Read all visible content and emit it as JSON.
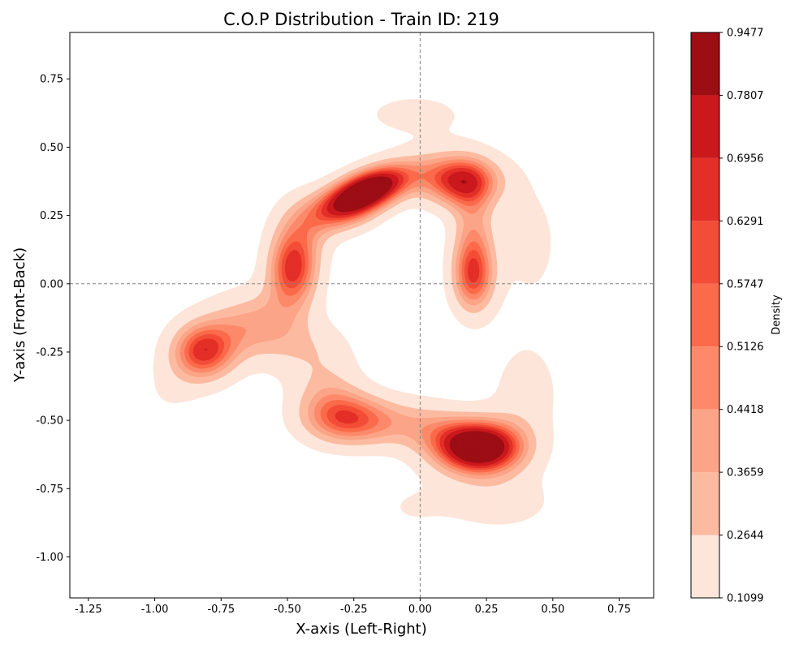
{
  "chart_data": {
    "type": "contour",
    "title": "C.O.P Distribution - Train ID: 219",
    "xlabel": "X-axis (Left-Right)",
    "ylabel": "Y-axis (Front-Back)",
    "xlim": [
      -1.32,
      0.88
    ],
    "ylim": [
      -1.15,
      0.92
    ],
    "x_ticks": [
      -1.25,
      -1.0,
      -0.75,
      -0.5,
      -0.25,
      0.0,
      0.25,
      0.5,
      0.75
    ],
    "x_tick_labels": [
      "-1.25",
      "-1.00",
      "-0.75",
      "-0.50",
      "-0.25",
      "0.00",
      "0.25",
      "0.50",
      "0.75"
    ],
    "y_ticks": [
      0.75,
      0.5,
      0.25,
      0.0,
      -0.25,
      -0.5,
      -0.75,
      -1.0
    ],
    "y_tick_labels": [
      "0.75",
      "0.50",
      "0.25",
      "0.00",
      "-0.25",
      "-0.50",
      "-0.75",
      "-1.00"
    ],
    "reference_lines": {
      "x": 0.0,
      "y": 0.0,
      "style": "dashed",
      "color": "#808080"
    },
    "grid": false,
    "density_peaks": [
      {
        "x": -0.2,
        "y": 0.34,
        "level": 0.9477
      },
      {
        "x": 0.22,
        "y": -0.6,
        "level": 0.9477
      },
      {
        "x": 0.2,
        "y": 0.0,
        "level": 0.62
      },
      {
        "x": -0.82,
        "y": -0.25,
        "level": 0.62
      },
      {
        "x": -0.48,
        "y": 0.05,
        "level": 0.75
      },
      {
        "x": 0.15,
        "y": 0.38,
        "level": 0.75
      },
      {
        "x": -0.25,
        "y": -0.5,
        "level": 0.65
      }
    ],
    "colorbar": {
      "label": "Density",
      "levels": [
        0.1099,
        0.2644,
        0.3659,
        0.4418,
        0.5126,
        0.5747,
        0.6291,
        0.6956,
        0.7807,
        0.9477
      ],
      "tick_labels": [
        "0.1099",
        "0.2644",
        "0.3659",
        "0.4418",
        "0.5126",
        "0.5747",
        "0.6291",
        "0.6956",
        "0.7807",
        "0.9477"
      ],
      "colors": [
        "#fee5d9",
        "#fcbba1",
        "#fca487",
        "#fc8a6a",
        "#fb6a4a",
        "#f34c37",
        "#e32f27",
        "#ca181d",
        "#9c0d14"
      ],
      "colormap": "Reds"
    }
  }
}
